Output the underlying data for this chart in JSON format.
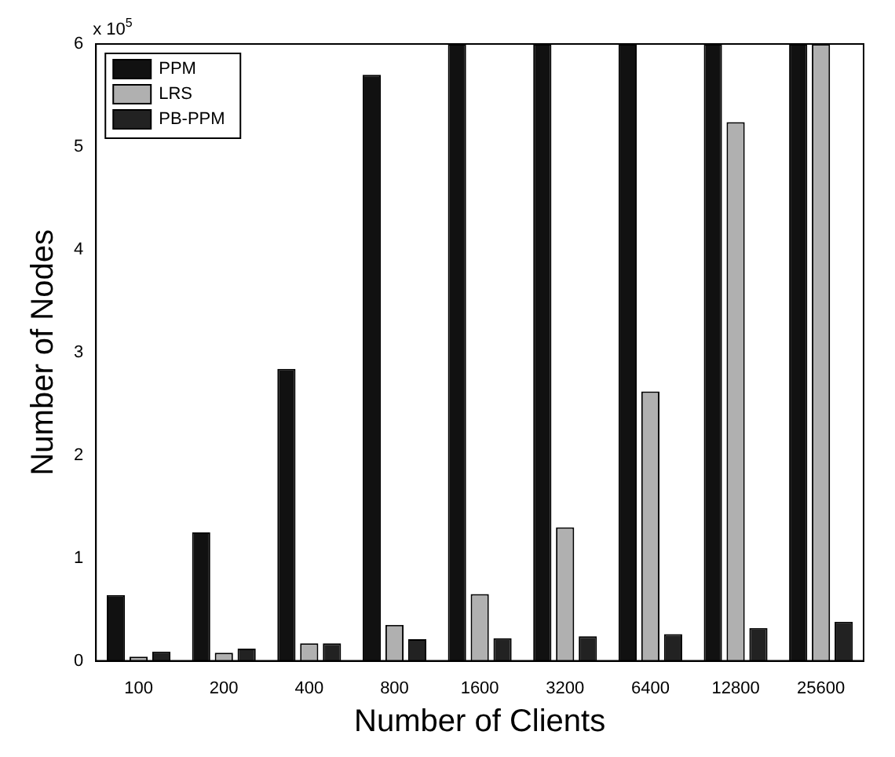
{
  "chart_data": {
    "type": "bar",
    "xlabel": "Number of Clients",
    "ylabel": "Number of Nodes",
    "categories": [
      "100",
      "200",
      "400",
      "800",
      "1600",
      "3200",
      "6400",
      "12800",
      "25600"
    ],
    "series": [
      {
        "name": "PPM",
        "color": "#111111",
        "values": [
          0.64,
          1.25,
          2.84,
          5.7,
          6,
          6,
          6,
          6,
          6
        ]
      },
      {
        "name": "LRS",
        "color": "#b0b0b0",
        "values": [
          0.04,
          0.08,
          0.17,
          0.35,
          0.65,
          1.3,
          2.62,
          5.24,
          6
        ]
      },
      {
        "name": "PB-PPM",
        "color": "#222222",
        "values": [
          0.09,
          0.12,
          0.17,
          0.21,
          0.22,
          0.24,
          0.26,
          0.32,
          0.38
        ]
      }
    ],
    "ylim": [
      0,
      6
    ],
    "yticks": [
      0,
      1,
      2,
      3,
      4,
      5,
      6
    ],
    "grid": false,
    "legend": "top left",
    "annotations": [
      "x 10$^{5}$"
    ]
  }
}
